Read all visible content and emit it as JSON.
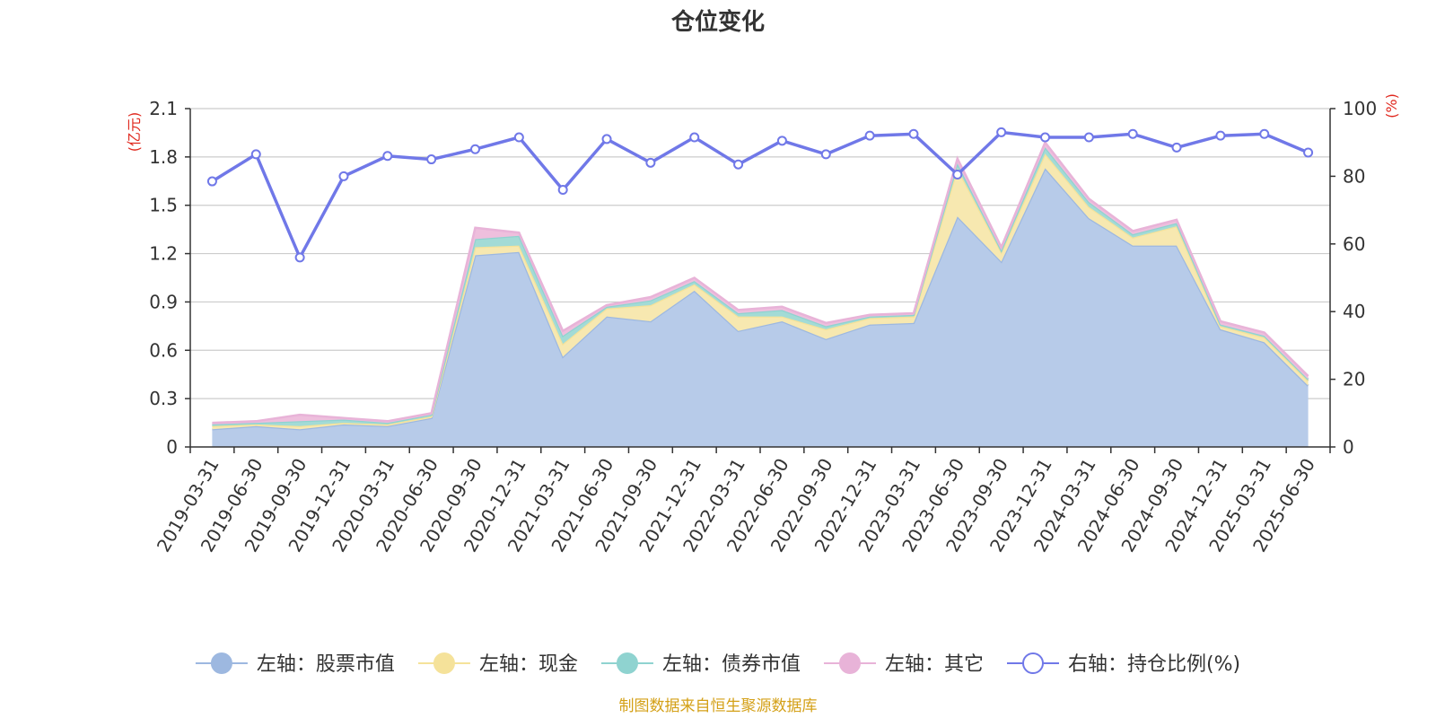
{
  "chart_data": {
    "type": "area",
    "title": "仓位变化",
    "source": "制图数据来自恒生聚源数据库",
    "left_axis": {
      "unit": "(亿元)",
      "min": 0,
      "max": 2.1,
      "ticks": [
        "0",
        "0.3",
        "0.6",
        "0.9",
        "1.2",
        "1.5",
        "1.8",
        "2.1"
      ]
    },
    "right_axis": {
      "unit": "(%)",
      "min": 0,
      "max": 100,
      "ticks": [
        "0",
        "20",
        "40",
        "60",
        "80",
        "100"
      ]
    },
    "grid": true,
    "legend_position": "bottom",
    "categories": [
      "2019-03-31",
      "2019-06-30",
      "2019-09-30",
      "2019-12-31",
      "2020-03-31",
      "2020-06-30",
      "2020-09-30",
      "2020-12-31",
      "2021-03-31",
      "2021-06-30",
      "2021-09-30",
      "2021-12-31",
      "2022-03-31",
      "2022-06-30",
      "2022-09-30",
      "2022-12-31",
      "2023-03-31",
      "2023-06-30",
      "2023-09-30",
      "2023-12-31",
      "2024-03-31",
      "2024-06-30",
      "2024-09-30",
      "2024-12-31",
      "2025-03-31",
      "2025-06-30"
    ],
    "stacked_series": [
      {
        "name": "左轴：股票市值",
        "color": "#9db8e0",
        "fill": "#b7cbe9",
        "values": [
          0.11,
          0.13,
          0.11,
          0.14,
          0.13,
          0.18,
          1.19,
          1.21,
          0.56,
          0.81,
          0.78,
          0.97,
          0.72,
          0.78,
          0.67,
          0.76,
          0.77,
          1.43,
          1.15,
          1.73,
          1.42,
          1.25,
          1.25,
          0.73,
          0.65,
          0.38
        ]
      },
      {
        "name": "左轴：现金",
        "color": "#f5e29a",
        "fill": "#f7e8b0",
        "values": [
          0.02,
          0.01,
          0.02,
          0.01,
          0.01,
          0.01,
          0.05,
          0.04,
          0.08,
          0.05,
          0.1,
          0.04,
          0.09,
          0.03,
          0.06,
          0.04,
          0.04,
          0.3,
          0.06,
          0.09,
          0.07,
          0.05,
          0.12,
          0.02,
          0.03,
          0.03
        ]
      },
      {
        "name": "左轴：债券市值",
        "color": "#8fd3d0",
        "fill": "#a3dbd6",
        "values": [
          0.01,
          0.01,
          0.03,
          0.02,
          0.01,
          0.01,
          0.05,
          0.06,
          0.05,
          0.01,
          0.03,
          0.02,
          0.02,
          0.04,
          0.02,
          0.01,
          0.01,
          0.03,
          0.01,
          0.04,
          0.03,
          0.02,
          0.02,
          0.01,
          0.01,
          0.01
        ]
      },
      {
        "name": "左轴：其它",
        "color": "#e8b3d8",
        "fill": "#eebfdd",
        "values": [
          0.01,
          0.01,
          0.04,
          0.01,
          0.01,
          0.01,
          0.07,
          0.02,
          0.03,
          0.01,
          0.02,
          0.02,
          0.02,
          0.02,
          0.02,
          0.01,
          0.01,
          0.03,
          0.02,
          0.03,
          0.02,
          0.02,
          0.02,
          0.02,
          0.02,
          0.02
        ]
      }
    ],
    "line_series": {
      "name": "右轴：持仓比例(%)",
      "color": "#7078e8",
      "values": [
        78.5,
        86.5,
        56.0,
        80.0,
        86.0,
        85.0,
        88.0,
        91.5,
        76.0,
        91.0,
        84.0,
        91.5,
        83.5,
        90.5,
        86.5,
        92.0,
        92.5,
        80.5,
        93.0,
        91.5,
        91.5,
        92.5,
        88.5,
        92.0,
        92.5,
        87.0
      ]
    }
  }
}
